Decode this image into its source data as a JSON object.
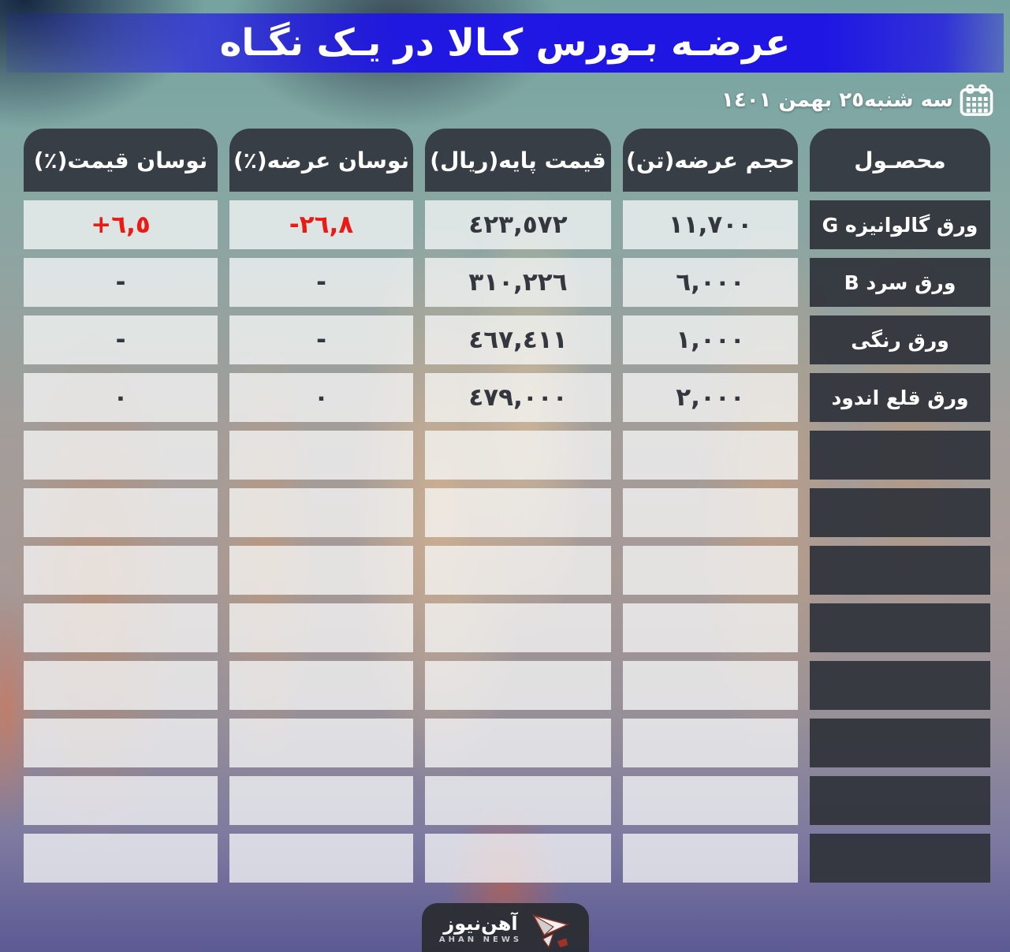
{
  "title": "عرضـه بـورس کـالا در یـک نگـاه",
  "date": {
    "text": "سه شنبه٢٥ بهمن ١٤٠١",
    "icon": "calendar-icon"
  },
  "table": {
    "headers": {
      "product": "محصـول",
      "volume": "حجم عرضه(تن)",
      "base_price": "قیمت پایه(ریال)",
      "supply_change": "نوسان عرضه(٪)",
      "price_change": "نوسان قیمت(٪)"
    },
    "rows": [
      {
        "product": "ورق گالوانیزه G",
        "volume": "١١,٧٠٠",
        "base_price": "٤٢٣,٥٧٢",
        "supply_change": "-٢٦,٨",
        "price_change": "+٦,٥"
      },
      {
        "product": "ورق سرد B",
        "volume": "٦,٠٠٠",
        "base_price": "٣١٠,٢٢٦",
        "supply_change": "-",
        "price_change": "-"
      },
      {
        "product": "ورق رنگی",
        "volume": "١,٠٠٠",
        "base_price": "٤٦٧,٤١١",
        "supply_change": "-",
        "price_change": "-"
      },
      {
        "product": "ورق قلع اندود",
        "volume": "٢,٠٠٠",
        "base_price": "٤٧٩,٠٠٠",
        "supply_change": "٠",
        "price_change": "٠"
      }
    ],
    "empty_row_count": 8
  },
  "footer": {
    "logo_fa": "آهن‌نیوز",
    "logo_en": "AHAN NEWS",
    "icon": "paper-plane-icon"
  },
  "colors": {
    "banner_blue": "#1f16e4",
    "negative_positive_red": "#ec1a15",
    "cell_dark": "#31343b",
    "cell_light": "rgba(250,251,251,0.74)",
    "number_text": "#34373d"
  }
}
